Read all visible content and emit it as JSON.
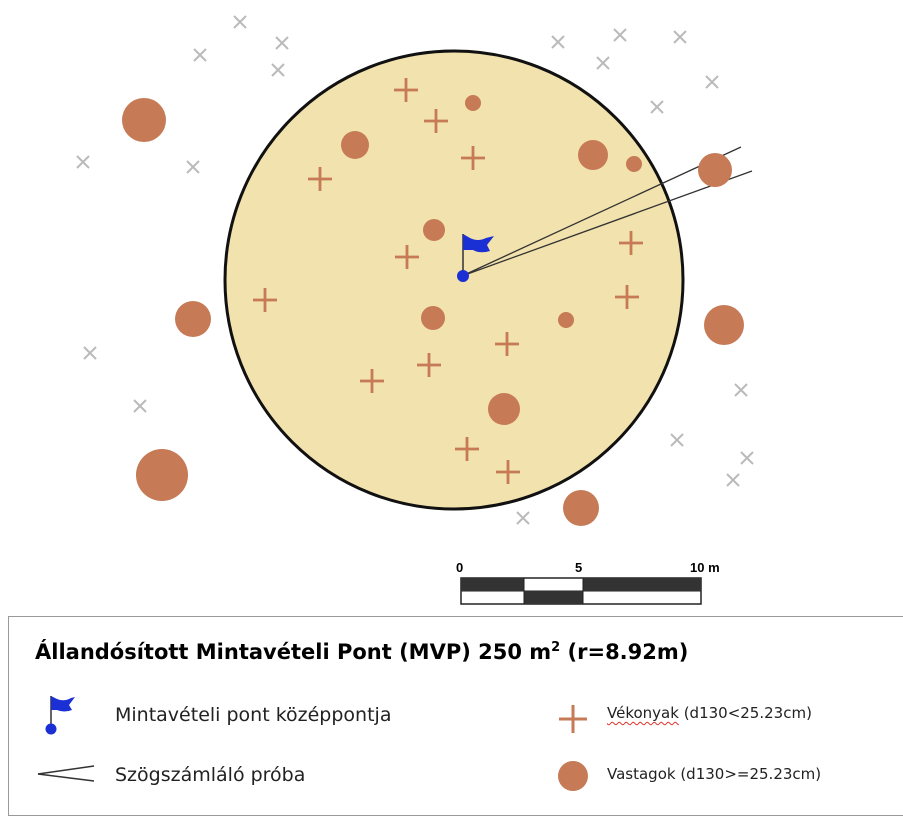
{
  "scale_bar": {
    "labels": [
      "0",
      "5",
      "10 m"
    ]
  },
  "legend": {
    "title_main": "Állandósított Mintavételi Pont (MVP) 250 m",
    "title_sup": "2",
    "title_tail": " (r=8.92m)",
    "items": {
      "center": "Mintavételi pont középpontja",
      "angle": "Szögszámláló próba",
      "thin_prefix": "Vékonyak",
      "thin_suffix": " (d130<25.23cm)",
      "thick": "Vastagok (d130>=25.23cm)"
    }
  },
  "colors": {
    "plot_fill": "#f2e2ad",
    "plot_stroke": "#111111",
    "tree_color": "#c67a55",
    "outside_marker": "#bbbbbb",
    "flag_blue": "#1a2fd4"
  },
  "icons": {
    "flag": "flag-icon",
    "plus": "plus-icon",
    "dot": "circle-icon",
    "angle": "angle-gauge-icon"
  }
}
